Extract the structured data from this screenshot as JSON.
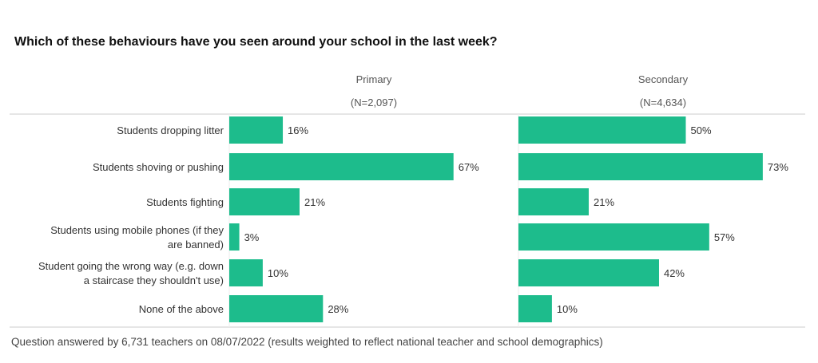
{
  "chart_data": {
    "type": "bar",
    "title": "Which of these behaviours have you seen around your school in the last week?",
    "footnote": "Question answered by 6,731 teachers on 08/07/2022 (results weighted to reflect national teacher and school demographics)",
    "categories": [
      [
        "Students dropping litter"
      ],
      [
        "Students shoving or pushing"
      ],
      [
        "Students fighting"
      ],
      [
        "Students using mobile phones (if they",
        "are banned)"
      ],
      [
        "Student going the wrong way (e.g. down",
        "a staircase they shouldn't use)"
      ],
      [
        "None of the above"
      ]
    ],
    "series": [
      {
        "name": "Primary",
        "n_label": "(N=2,097)",
        "values": [
          16,
          67,
          21,
          3,
          10,
          28
        ]
      },
      {
        "name": "Secondary",
        "n_label": "(N=4,634)",
        "values": [
          50,
          73,
          21,
          57,
          42,
          10
        ]
      }
    ],
    "unit": "%",
    "xlim": [
      0,
      75
    ],
    "bar_color": "#1dbc8c"
  }
}
